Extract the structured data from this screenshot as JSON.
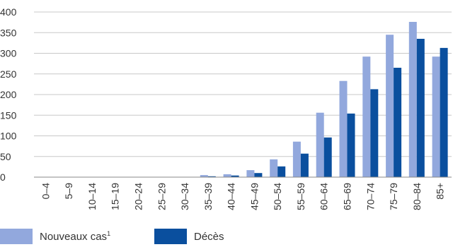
{
  "chart_data": {
    "type": "bar",
    "categories": [
      "0–4",
      "5–9",
      "10–14",
      "15–19",
      "20–24",
      "25–29",
      "30–34",
      "35–39",
      "40–44",
      "45–49",
      "50–54",
      "55–59",
      "60–64",
      "65–69",
      "70–74",
      "75–79",
      "80–84",
      "85+"
    ],
    "series": [
      {
        "name": "Nouveaux cas",
        "footnote": "1",
        "color": "#92a8dd",
        "values": [
          0.5,
          0.5,
          0.5,
          0.5,
          0.5,
          0.5,
          0.5,
          5,
          7,
          17,
          43,
          86,
          156,
          233,
          292,
          345,
          376,
          292
        ]
      },
      {
        "name": "Décès",
        "color": "#0a4f9e",
        "values": [
          0.3,
          0.3,
          0.3,
          0.3,
          0.3,
          0.3,
          0.3,
          2,
          4,
          10,
          26,
          57,
          96,
          154,
          213,
          265,
          335,
          313
        ]
      }
    ],
    "ylim": [
      0,
      400
    ],
    "yticks": [
      0,
      50,
      100,
      150,
      200,
      250,
      300,
      350,
      400
    ],
    "grid": true,
    "legend": "bottom-left"
  }
}
